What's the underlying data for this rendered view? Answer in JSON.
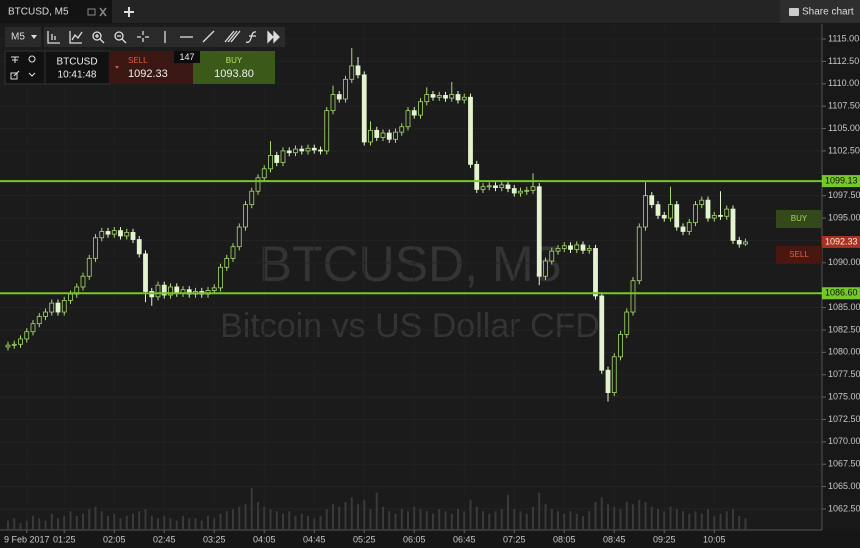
{
  "tab": {
    "title": "BTCUSD, M5",
    "share": "Share chart"
  },
  "toolbar": {
    "interval": "M5"
  },
  "ticket": {
    "symbol": "BTCUSD",
    "time": "10:41:48",
    "sell_label": "SELL",
    "sell_price": "1092.33",
    "spread": "147",
    "buy_label": "BUY",
    "buy_price": "1093.80"
  },
  "chart_data": {
    "type": "candlestick",
    "watermark": "BTCUSD, M5",
    "subtitle": "Bitcoin vs US Dollar CFD",
    "candles": [
      [
        1080.6,
        1081.2,
        1080.2,
        1080.8
      ],
      [
        1080.8,
        1081.3,
        1080.4,
        1080.9
      ],
      [
        1080.9,
        1081.9,
        1080.5,
        1081.5
      ],
      [
        1081.5,
        1082.7,
        1081.1,
        1082.3
      ],
      [
        1082.3,
        1083.6,
        1081.9,
        1083.2
      ],
      [
        1083.2,
        1084.4,
        1082.8,
        1084.0
      ],
      [
        1084.0,
        1084.9,
        1083.6,
        1084.5
      ],
      [
        1084.5,
        1085.9,
        1084.1,
        1085.5
      ],
      [
        1085.5,
        1085.9,
        1084.1,
        1084.5
      ],
      [
        1084.5,
        1086.2,
        1084.1,
        1085.8
      ],
      [
        1085.8,
        1086.9,
        1085.4,
        1086.5
      ],
      [
        1086.5,
        1087.7,
        1086.1,
        1087.3
      ],
      [
        1087.3,
        1088.9,
        1086.9,
        1088.5
      ],
      [
        1088.5,
        1090.9,
        1088.1,
        1090.5
      ],
      [
        1090.5,
        1093.2,
        1090.1,
        1092.8
      ],
      [
        1092.8,
        1093.9,
        1092.4,
        1093.5
      ],
      [
        1093.5,
        1093.9,
        1092.8,
        1093.2
      ],
      [
        1093.2,
        1094.0,
        1092.8,
        1093.6
      ],
      [
        1093.6,
        1094.0,
        1092.6,
        1093.0
      ],
      [
        1093.0,
        1093.8,
        1092.6,
        1093.4
      ],
      [
        1093.4,
        1093.8,
        1092.2,
        1092.6
      ],
      [
        1092.6,
        1093.0,
        1090.6,
        1091.0
      ],
      [
        1091.0,
        1091.4,
        1085.6,
        1086.8
      ],
      [
        1086.8,
        1087.2,
        1085.2,
        1086.2
      ],
      [
        1086.2,
        1087.9,
        1085.8,
        1087.5
      ],
      [
        1087.5,
        1087.9,
        1086.0,
        1086.4
      ],
      [
        1086.4,
        1087.7,
        1086.0,
        1087.3
      ],
      [
        1087.3,
        1087.7,
        1086.2,
        1086.6
      ],
      [
        1086.6,
        1087.4,
        1086.2,
        1087.0
      ],
      [
        1087.0,
        1087.4,
        1086.1,
        1086.5
      ],
      [
        1086.5,
        1087.2,
        1086.1,
        1086.8
      ],
      [
        1086.8,
        1087.2,
        1086.1,
        1086.5
      ],
      [
        1086.5,
        1087.3,
        1086.1,
        1086.9
      ],
      [
        1086.9,
        1087.6,
        1086.5,
        1087.2
      ],
      [
        1087.2,
        1089.9,
        1086.8,
        1089.5
      ],
      [
        1089.5,
        1090.9,
        1089.1,
        1090.5
      ],
      [
        1090.5,
        1092.2,
        1090.1,
        1091.8
      ],
      [
        1091.8,
        1094.4,
        1091.4,
        1094.0
      ],
      [
        1094.0,
        1096.9,
        1093.6,
        1096.5
      ],
      [
        1096.5,
        1098.4,
        1096.1,
        1098.0
      ],
      [
        1098.0,
        1099.9,
        1097.6,
        1099.5
      ],
      [
        1099.5,
        1100.9,
        1099.1,
        1100.5
      ],
      [
        1100.5,
        1103.6,
        1100.1,
        1102.0
      ],
      [
        1102.0,
        1102.4,
        1100.8,
        1101.2
      ],
      [
        1101.2,
        1102.9,
        1100.8,
        1102.5
      ],
      [
        1102.5,
        1102.9,
        1101.9,
        1102.3
      ],
      [
        1102.3,
        1103.1,
        1101.9,
        1102.7
      ],
      [
        1102.7,
        1103.1,
        1102.1,
        1102.5
      ],
      [
        1102.5,
        1103.2,
        1102.1,
        1102.8
      ],
      [
        1102.8,
        1103.2,
        1102.2,
        1102.6
      ],
      [
        1102.6,
        1103.0,
        1102.1,
        1102.5
      ],
      [
        1102.5,
        1107.4,
        1102.1,
        1107.0
      ],
      [
        1107.0,
        1109.8,
        1106.6,
        1108.8
      ],
      [
        1108.8,
        1109.2,
        1107.9,
        1108.3
      ],
      [
        1108.3,
        1110.9,
        1107.9,
        1110.5
      ],
      [
        1110.5,
        1114.0,
        1110.1,
        1112.0
      ],
      [
        1112.0,
        1113.0,
        1110.6,
        1111.0
      ],
      [
        1111.0,
        1111.4,
        1103.1,
        1103.5
      ],
      [
        1103.5,
        1105.8,
        1103.1,
        1104.8
      ],
      [
        1104.8,
        1105.2,
        1103.6,
        1104.0
      ],
      [
        1104.0,
        1104.9,
        1103.6,
        1104.5
      ],
      [
        1104.5,
        1104.9,
        1103.4,
        1103.8
      ],
      [
        1103.8,
        1105.0,
        1103.4,
        1104.6
      ],
      [
        1104.6,
        1105.6,
        1104.2,
        1105.2
      ],
      [
        1105.2,
        1107.4,
        1104.8,
        1107.0
      ],
      [
        1107.0,
        1107.4,
        1106.1,
        1106.5
      ],
      [
        1106.5,
        1108.4,
        1106.1,
        1108.0
      ],
      [
        1108.0,
        1109.6,
        1107.6,
        1108.8
      ],
      [
        1108.8,
        1109.2,
        1108.1,
        1108.5
      ],
      [
        1108.5,
        1109.1,
        1108.1,
        1108.7
      ],
      [
        1108.7,
        1109.1,
        1108.0,
        1108.4
      ],
      [
        1108.4,
        1110.2,
        1108.0,
        1108.8
      ],
      [
        1108.8,
        1109.2,
        1107.8,
        1108.2
      ],
      [
        1108.2,
        1108.9,
        1107.8,
        1108.5
      ],
      [
        1108.5,
        1108.9,
        1100.6,
        1101.0
      ],
      [
        1101.0,
        1101.4,
        1097.8,
        1098.2
      ],
      [
        1098.2,
        1098.9,
        1097.8,
        1098.5
      ],
      [
        1098.5,
        1099.0,
        1098.1,
        1098.6
      ],
      [
        1098.6,
        1099.0,
        1098.0,
        1098.4
      ],
      [
        1098.4,
        1099.1,
        1098.0,
        1098.7
      ],
      [
        1098.7,
        1099.1,
        1097.9,
        1098.3
      ],
      [
        1098.3,
        1098.7,
        1097.4,
        1097.8
      ],
      [
        1097.8,
        1098.4,
        1097.4,
        1098.0
      ],
      [
        1098.0,
        1098.5,
        1097.6,
        1098.1
      ],
      [
        1098.1,
        1100.0,
        1097.7,
        1098.5
      ],
      [
        1098.5,
        1098.9,
        1087.5,
        1088.5
      ],
      [
        1088.5,
        1090.6,
        1088.1,
        1090.2
      ],
      [
        1090.2,
        1091.7,
        1089.8,
        1091.3
      ],
      [
        1091.3,
        1092.0,
        1090.9,
        1091.6
      ],
      [
        1091.6,
        1092.3,
        1091.2,
        1091.9
      ],
      [
        1091.9,
        1092.3,
        1091.1,
        1091.5
      ],
      [
        1091.5,
        1092.4,
        1091.1,
        1092.0
      ],
      [
        1092.0,
        1092.4,
        1091.0,
        1091.4
      ],
      [
        1091.4,
        1092.0,
        1091.0,
        1091.6
      ],
      [
        1091.6,
        1092.0,
        1085.9,
        1086.3
      ],
      [
        1086.3,
        1086.7,
        1077.6,
        1078.0
      ],
      [
        1078.0,
        1078.4,
        1074.5,
        1075.5
      ],
      [
        1075.5,
        1079.9,
        1075.1,
        1079.5
      ],
      [
        1079.5,
        1082.4,
        1079.1,
        1082.0
      ],
      [
        1082.0,
        1084.9,
        1081.6,
        1084.5
      ],
      [
        1084.5,
        1088.4,
        1084.1,
        1088.0
      ],
      [
        1088.0,
        1094.4,
        1087.6,
        1094.0
      ],
      [
        1094.0,
        1099.0,
        1093.6,
        1097.5
      ],
      [
        1097.5,
        1097.9,
        1096.1,
        1096.5
      ],
      [
        1096.5,
        1096.9,
        1094.9,
        1095.3
      ],
      [
        1095.3,
        1095.7,
        1094.6,
        1095.0
      ],
      [
        1095.0,
        1098.5,
        1094.6,
        1096.5
      ],
      [
        1096.5,
        1096.9,
        1093.6,
        1094.0
      ],
      [
        1094.0,
        1094.4,
        1093.1,
        1093.5
      ],
      [
        1093.5,
        1094.9,
        1093.1,
        1094.5
      ],
      [
        1094.5,
        1096.9,
        1094.1,
        1096.5
      ],
      [
        1096.5,
        1097.4,
        1096.1,
        1097.0
      ],
      [
        1097.0,
        1097.4,
        1094.6,
        1095.0
      ],
      [
        1095.0,
        1095.7,
        1094.6,
        1095.3
      ],
      [
        1095.3,
        1098.0,
        1094.8,
        1095.2
      ],
      [
        1095.2,
        1096.4,
        1094.8,
        1096.0
      ],
      [
        1096.0,
        1096.4,
        1092.1,
        1092.5
      ],
      [
        1092.5,
        1092.9,
        1091.7,
        1092.1
      ],
      [
        1092.1,
        1092.7,
        1091.9,
        1092.33
      ]
    ],
    "volumes": [
      4,
      5,
      3,
      4,
      6,
      5,
      4,
      7,
      5,
      6,
      8,
      6,
      7,
      9,
      10,
      8,
      6,
      7,
      5,
      6,
      7,
      8,
      9,
      6,
      5,
      6,
      5,
      4,
      6,
      5,
      5,
      4,
      6,
      5,
      7,
      8,
      9,
      10,
      11,
      18,
      12,
      10,
      9,
      8,
      7,
      8,
      6,
      7,
      6,
      5,
      6,
      9,
      11,
      10,
      12,
      14,
      11,
      13,
      9,
      16,
      10,
      8,
      7,
      9,
      8,
      10,
      9,
      8,
      7,
      9,
      8,
      7,
      9,
      8,
      13,
      10,
      8,
      7,
      8,
      9,
      15,
      9,
      8,
      7,
      10,
      16,
      11,
      9,
      8,
      7,
      8,
      7,
      6,
      8,
      12,
      14,
      11,
      10,
      9,
      12,
      11,
      13,
      12,
      10,
      9,
      8,
      10,
      9,
      8,
      7,
      8,
      7,
      9,
      6,
      7,
      8,
      9,
      6,
      5
    ],
    "xlim": [
      -1.28,
      130.24
    ],
    "xticks": [
      {
        "value": 3,
        "label": "9 Feb 2017"
      },
      {
        "value": 9,
        "label": "01:25"
      },
      {
        "value": 17,
        "label": "02:05"
      },
      {
        "value": 25,
        "label": "02:45"
      },
      {
        "value": 33,
        "label": "03:25"
      },
      {
        "value": 41,
        "label": "04:05"
      },
      {
        "value": 49,
        "label": "04:45"
      },
      {
        "value": 57,
        "label": "05:25"
      },
      {
        "value": 65,
        "label": "06:05"
      },
      {
        "value": 73,
        "label": "06:45"
      },
      {
        "value": 81,
        "label": "07:25"
      },
      {
        "value": 89,
        "label": "08:05"
      },
      {
        "value": 97,
        "label": "08:45"
      },
      {
        "value": 105,
        "label": "09:25"
      },
      {
        "value": 113,
        "label": "10:05"
      }
    ],
    "ylim": [
      1060.15,
      1116.68
    ],
    "yticks": [
      {
        "value": 1062.5,
        "label": "1062.50"
      },
      {
        "value": 1065,
        "label": "1065.00"
      },
      {
        "value": 1067.5,
        "label": "1067.50"
      },
      {
        "value": 1070,
        "label": "1070.00"
      },
      {
        "value": 1072.5,
        "label": "1072.50"
      },
      {
        "value": 1075,
        "label": "1075.00"
      },
      {
        "value": 1077.5,
        "label": "1077.50"
      },
      {
        "value": 1080,
        "label": "1080.00"
      },
      {
        "value": 1082.5,
        "label": "1082.50"
      },
      {
        "value": 1085,
        "label": "1085.00"
      },
      {
        "value": 1090,
        "label": "1090.00"
      },
      {
        "value": 1092.5,
        "label": "1092.50"
      },
      {
        "value": 1095,
        "label": "1095.00"
      },
      {
        "value": 1097.5,
        "label": "1097.50"
      },
      {
        "value": 1102.5,
        "label": "1102.50"
      },
      {
        "value": 1105,
        "label": "1105.00"
      },
      {
        "value": 1107.5,
        "label": "1107.50"
      },
      {
        "value": 1110,
        "label": "1110.00"
      },
      {
        "value": 1112.5,
        "label": "1112.50"
      },
      {
        "value": 1115,
        "label": "1115.00"
      }
    ],
    "levels": [
      1099.13,
      {
        "value": 1086.6,
        "label": "1086.60"
      }
    ],
    "last_price": 1092.33,
    "buy_badge": "BUY",
    "sell_badge": "SELL",
    "up_color": "#a6d96a",
    "down_color": "#e4f3cf",
    "level_color": "#76c82a",
    "last_color": "#a8321f",
    "volume_color": "#3a3a3a",
    "grid": true
  }
}
